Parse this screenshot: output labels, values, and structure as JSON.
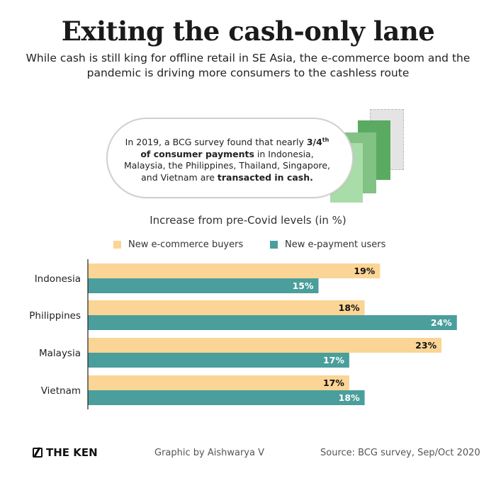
{
  "header": {
    "title": "Exiting the cash-only lane",
    "subtitle": "While cash is still king for offline retail in SE Asia, the e-commerce boom and the pandemic is driving more consumers to the cashless route"
  },
  "callout": {
    "part1": "In 2019, a BCG survey found that nearly ",
    "bold1": "3/4",
    "sup": "th",
    "bold2": "of consumer payments",
    "part2": " in Indonesia, Malaysia, the Philippines, Thailand, Singapore, and Vietnam are ",
    "bold3": "transacted in cash."
  },
  "colors": {
    "ecommerce": "#fbd595",
    "epayment": "#4a9e9c",
    "note_light": "#a8dca8",
    "note_mid": "#82c285",
    "note_dark": "#5aaa62",
    "note_grey": "#d8d8d8"
  },
  "chart_data": {
    "type": "bar",
    "orientation": "horizontal",
    "title": "Increase from pre-Covid levels (in %)",
    "categories": [
      "Indonesia",
      "Philippines",
      "Malaysia",
      "Vietnam"
    ],
    "series": [
      {
        "name": "New e-commerce buyers",
        "values": [
          19,
          18,
          23,
          17
        ]
      },
      {
        "name": "New e-payment users",
        "values": [
          15,
          24,
          17,
          18
        ]
      }
    ],
    "value_suffix": "%",
    "xlim": [
      0,
      24
    ],
    "legend": "top"
  },
  "footer": {
    "brand": "THE KEN",
    "credit": "Graphic by Aishwarya V",
    "source": "Source: BCG survey, Sep/Oct 2020"
  }
}
